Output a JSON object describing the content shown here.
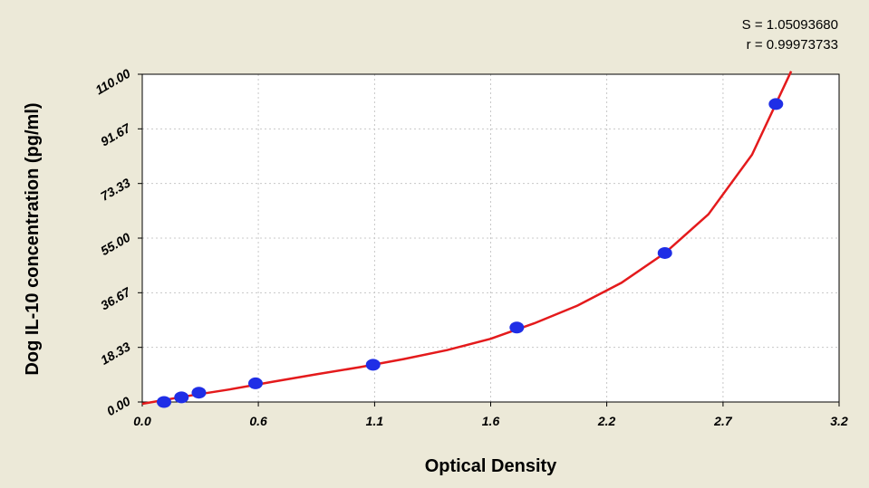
{
  "stats": {
    "s_line": "S = 1.05093680",
    "r_line": "r = 0.99973733"
  },
  "colors": {
    "background": "#ece9d8",
    "plot_background": "#ffffff",
    "curve": "#e41a1c",
    "points": "#1f2ee6",
    "grid": "#c8c8c8"
  },
  "chart_data": {
    "type": "scatter",
    "xlabel": "Optical Density",
    "ylabel": "Dog IL-10 concentration (pg/ml)",
    "xlim": [
      0,
      3.2
    ],
    "ylim": [
      0,
      110
    ],
    "x_ticks": [
      "0.0",
      "0.6",
      "1.1",
      "1.6",
      "2.2",
      "2.7",
      "3.2"
    ],
    "x_tick_values": [
      0,
      0.533,
      1.067,
      1.6,
      2.133,
      2.667,
      3.2
    ],
    "y_ticks": [
      "0.00",
      "18.33",
      "36.67",
      "55.00",
      "73.33",
      "91.67",
      "110.00"
    ],
    "y_tick_values": [
      0,
      18.33,
      36.67,
      55,
      73.33,
      91.67,
      110
    ],
    "grid": true,
    "series": [
      {
        "kind": "points",
        "x": [
          0.1,
          0.18,
          0.26,
          0.52,
          1.06,
          1.72,
          2.4,
          2.91
        ],
        "y": [
          0,
          1.56,
          3.13,
          6.25,
          12.5,
          25,
          50,
          100
        ]
      },
      {
        "kind": "fitted-curve",
        "x": [
          0.0,
          0.2,
          0.4,
          0.6,
          0.8,
          1.0,
          1.2,
          1.4,
          1.6,
          1.8,
          2.0,
          2.2,
          2.4,
          2.6,
          2.8,
          2.98
        ],
        "y": [
          -0.6,
          1.9,
          4.2,
          6.8,
          9.3,
          11.7,
          14.4,
          17.4,
          21.2,
          26.4,
          32.4,
          40.0,
          50.0,
          63.0,
          83.0,
          111.0
        ]
      }
    ]
  }
}
